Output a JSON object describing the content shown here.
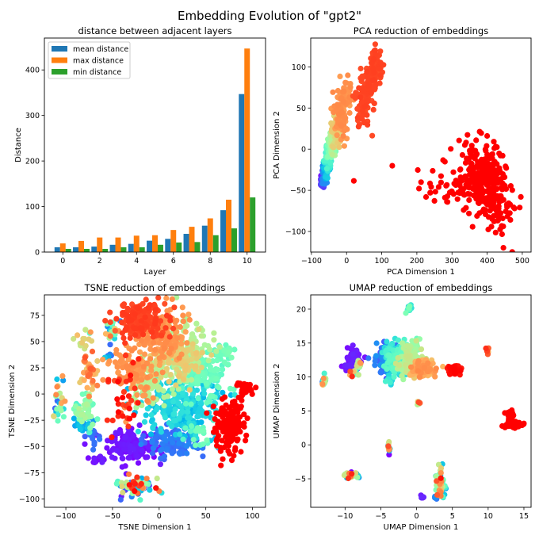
{
  "figure_title": "Embedding Evolution of \"gpt2\"",
  "chart_data": [
    {
      "type": "bar",
      "title": "distance between adjacent layers",
      "xlabel": "Layer",
      "ylabel": "Distance",
      "xlim": [
        -1.0,
        11.0
      ],
      "ylim": [
        0,
        470
      ],
      "xticks": [
        0,
        2,
        4,
        6,
        8,
        10
      ],
      "xtick_labels": [
        "0",
        "2",
        "4",
        "6",
        "8",
        "10"
      ],
      "yticks": [
        0,
        100,
        200,
        300,
        400
      ],
      "ytick_labels": [
        "0",
        "100",
        "200",
        "300",
        "400"
      ],
      "legend_position": "top-left",
      "categories": [
        0,
        1,
        2,
        3,
        4,
        5,
        6,
        7,
        8,
        9,
        10
      ],
      "series": [
        {
          "name": "mean distance",
          "color": "#1f77b4",
          "values": [
            10.5,
            10.5,
            12,
            16,
            18,
            25,
            29,
            40,
            58,
            92,
            347
          ]
        },
        {
          "name": "max distance",
          "color": "#ff7f0e",
          "values": [
            19,
            24.5,
            32,
            32,
            36,
            37,
            48.5,
            55.5,
            74,
            115,
            447
          ]
        },
        {
          "name": "min distance",
          "color": "#2ca02c",
          "values": [
            7,
            7,
            7,
            10.5,
            10.5,
            16,
            21,
            22,
            37,
            52,
            120
          ]
        }
      ]
    },
    {
      "type": "scatter",
      "title": "PCA reduction of embeddings",
      "xlabel": "PCA Dimension 1",
      "ylabel": "PCA Dimension 2",
      "xlim": [
        -102,
        525
      ],
      "ylim": [
        -125,
        135
      ],
      "xticks": [
        -100,
        0,
        100,
        200,
        300,
        400,
        500
      ],
      "xtick_labels": [
        "−100",
        "0",
        "100",
        "200",
        "300",
        "400",
        "500"
      ],
      "yticks": [
        -100,
        -50,
        0,
        50,
        100
      ],
      "ytick_labels": [
        "−100",
        "−50",
        "0",
        "50",
        "100"
      ],
      "colormap": "rainbow (by layer)",
      "clusters": [
        {
          "x": -68,
          "y": -40,
          "sx": 4,
          "sy": 4,
          "n": 40,
          "c": [
            0.0,
            0.1
          ]
        },
        {
          "x": -63,
          "y": -31,
          "sx": 4,
          "sy": 5,
          "n": 40,
          "c": [
            0.1,
            0.2
          ]
        },
        {
          "x": -58,
          "y": -22,
          "sx": 5,
          "sy": 6,
          "n": 40,
          "c": [
            0.2,
            0.3
          ]
        },
        {
          "x": -52,
          "y": -12,
          "sx": 5,
          "sy": 6,
          "n": 45,
          "c": [
            0.3,
            0.42
          ]
        },
        {
          "x": -45,
          "y": -2,
          "sx": 6,
          "sy": 6,
          "n": 50,
          "c": [
            0.42,
            0.52
          ]
        },
        {
          "x": -38,
          "y": 8,
          "sx": 7,
          "sy": 8,
          "n": 50,
          "c": [
            0.52,
            0.62
          ]
        },
        {
          "x": -30,
          "y": 22,
          "sx": 8,
          "sy": 10,
          "n": 60,
          "c": [
            0.66,
            0.72
          ]
        },
        {
          "x": -15,
          "y": 45,
          "sx": 10,
          "sy": 14,
          "n": 80,
          "c": [
            0.78,
            0.82
          ]
        },
        {
          "x": 0,
          "y": 62,
          "sx": 8,
          "sy": 10,
          "n": 40,
          "c": [
            0.78,
            0.82
          ]
        },
        {
          "x": 45,
          "y": 50,
          "sx": 10,
          "sy": 10,
          "n": 50,
          "c": [
            0.9,
            0.92
          ]
        },
        {
          "x": 65,
          "y": 78,
          "sx": 12,
          "sy": 14,
          "n": 90,
          "c": [
            0.9,
            0.92
          ]
        },
        {
          "x": 85,
          "y": 103,
          "sx": 8,
          "sy": 10,
          "n": 60,
          "c": [
            0.9,
            0.92
          ]
        },
        {
          "x": 385,
          "y": -35,
          "sx": 35,
          "sy": 22,
          "n": 260,
          "c": [
            1.0,
            1.0
          ]
        },
        {
          "x": 420,
          "y": -70,
          "sx": 25,
          "sy": 20,
          "n": 60,
          "c": [
            1.0,
            1.0
          ]
        },
        {
          "x": 270,
          "y": -40,
          "sx": 45,
          "sy": 20,
          "n": 30,
          "c": [
            1.0,
            1.0
          ]
        },
        {
          "x": 20,
          "y": -38,
          "sx": 0.5,
          "sy": 0.5,
          "n": 1,
          "c": [
            1.0,
            1.0
          ]
        },
        {
          "x": 130,
          "y": -20,
          "sx": 0.5,
          "sy": 0.5,
          "n": 1,
          "c": [
            1.0,
            1.0
          ]
        }
      ]
    },
    {
      "type": "scatter",
      "title": "TSNE reduction of embeddings",
      "xlabel": "TSNE Dimension 1",
      "ylabel": "TSNE Dimension 2",
      "xlim": [
        -123,
        114
      ],
      "ylim": [
        -108,
        94.5
      ],
      "xticks": [
        -100,
        -50,
        0,
        50,
        100
      ],
      "xtick_labels": [
        "−100",
        "−50",
        "0",
        "50",
        "100"
      ],
      "yticks": [
        -100,
        -75,
        -50,
        -25,
        0,
        25,
        50,
        75
      ],
      "ytick_labels": [
        "−100",
        "−75",
        "−50",
        "−25",
        "0",
        "25",
        "50",
        "75"
      ],
      "colormap": "rainbow (by layer)",
      "clusters": [
        {
          "x": 20,
          "y": -10,
          "sx": 22,
          "sy": 14,
          "n": 260,
          "c": [
            0.25,
            0.35
          ]
        },
        {
          "x": 45,
          "y": 20,
          "sx": 14,
          "sy": 12,
          "n": 130,
          "c": [
            0.42,
            0.48
          ]
        },
        {
          "x": 15,
          "y": -45,
          "sx": 16,
          "sy": 7,
          "n": 130,
          "c": [
            0.12,
            0.18
          ]
        },
        {
          "x": -30,
          "y": -50,
          "sx": 14,
          "sy": 9,
          "n": 160,
          "c": [
            0.0,
            0.04
          ]
        },
        {
          "x": -65,
          "y": -62,
          "sx": 4,
          "sy": 2,
          "n": 15,
          "c": [
            0.0,
            0.04
          ]
        },
        {
          "x": -10,
          "y": 15,
          "sx": 12,
          "sy": 10,
          "n": 90,
          "c": [
            0.58,
            0.62
          ]
        },
        {
          "x": 30,
          "y": 45,
          "sx": 14,
          "sy": 14,
          "n": 110,
          "c": [
            0.58,
            0.62
          ]
        },
        {
          "x": 20,
          "y": 32,
          "sx": 14,
          "sy": 12,
          "n": 120,
          "c": [
            0.68,
            0.72
          ]
        },
        {
          "x": 5,
          "y": 55,
          "sx": 14,
          "sy": 13,
          "n": 150,
          "c": [
            0.78,
            0.82
          ]
        },
        {
          "x": -25,
          "y": 25,
          "sx": 13,
          "sy": 14,
          "n": 110,
          "c": [
            0.78,
            0.82
          ]
        },
        {
          "x": -20,
          "y": 70,
          "sx": 14,
          "sy": 9,
          "n": 160,
          "c": [
            0.9,
            0.93
          ]
        },
        {
          "x": 75,
          "y": -30,
          "sx": 9,
          "sy": 13,
          "n": 160,
          "c": [
            1.0,
            1.0
          ]
        },
        {
          "x": 92,
          "y": 5,
          "sx": 5,
          "sy": 4,
          "n": 30,
          "c": [
            1.0,
            1.0
          ]
        },
        {
          "x": -40,
          "y": -5,
          "sx": 9,
          "sy": 18,
          "n": 35,
          "c": [
            0.9,
            1.0
          ]
        },
        {
          "x": -75,
          "y": 20,
          "sx": 5,
          "sy": 9,
          "n": 40,
          "c": [
            0.7,
            0.9
          ]
        },
        {
          "x": -80,
          "y": -15,
          "sx": 6,
          "sy": 9,
          "n": 50,
          "c": [
            0.4,
            0.6
          ]
        },
        {
          "x": -82,
          "y": -30,
          "sx": 5,
          "sy": 5,
          "n": 25,
          "c": [
            0.2,
            0.3
          ]
        },
        {
          "x": -72,
          "y": -40,
          "sx": 4,
          "sy": 5,
          "n": 20,
          "c": [
            0.12,
            0.16
          ]
        },
        {
          "x": -107,
          "y": -5,
          "sx": 3,
          "sy": 10,
          "n": 25,
          "c": [
            0.1,
            0.85
          ]
        },
        {
          "x": -25,
          "y": -88,
          "sx": 11,
          "sy": 6,
          "n": 70,
          "c": [
            0.0,
            1.0
          ]
        },
        {
          "x": -50,
          "y": 60,
          "sx": 5,
          "sy": 5,
          "n": 20,
          "c": [
            0.1,
            0.9
          ]
        },
        {
          "x": -80,
          "y": 50,
          "sx": 6,
          "sy": 5,
          "n": 15,
          "c": [
            0.4,
            0.8
          ]
        },
        {
          "x": -55,
          "y": 35,
          "sx": 2,
          "sy": 2,
          "n": 6,
          "c": [
            0.05,
            0.3
          ]
        },
        {
          "x": 45,
          "y": -40,
          "sx": 10,
          "sy": 6,
          "n": 20,
          "c": [
            0.4,
            0.5
          ]
        },
        {
          "x": 70,
          "y": 40,
          "sx": 6,
          "sy": 4,
          "n": 20,
          "c": [
            0.4,
            0.5
          ]
        }
      ]
    },
    {
      "type": "scatter",
      "title": "UMAP reduction of embeddings",
      "xlabel": "UMAP Dimension 1",
      "ylabel": "UMAP Dimension 2",
      "xlim": [
        -14.8,
        16.0
      ],
      "ylim": [
        -9.2,
        22.1
      ],
      "xticks": [
        -10,
        -5,
        0,
        5,
        10,
        15
      ],
      "xtick_labels": [
        "−10",
        "−5",
        "0",
        "5",
        "10",
        "15"
      ],
      "yticks": [
        -5,
        0,
        5,
        10,
        15,
        20
      ],
      "ytick_labels": [
        "−5",
        "0",
        "5",
        "10",
        "15",
        "20"
      ],
      "colormap": "rainbow (by layer)",
      "clusters": [
        {
          "x": -4.2,
          "y": 12.5,
          "sx": 0.7,
          "sy": 1.0,
          "n": 150,
          "c": [
            0.1,
            0.2
          ]
        },
        {
          "x": -2.8,
          "y": 12.6,
          "sx": 0.9,
          "sy": 1.0,
          "n": 160,
          "c": [
            0.3,
            0.45
          ]
        },
        {
          "x": -0.9,
          "y": 12.3,
          "sx": 0.8,
          "sy": 1.0,
          "n": 110,
          "c": [
            0.55,
            0.65
          ]
        },
        {
          "x": -0.3,
          "y": 14.6,
          "sx": 0.4,
          "sy": 0.5,
          "n": 25,
          "c": [
            0.42,
            0.55
          ]
        },
        {
          "x": 0.9,
          "y": 11.2,
          "sx": 0.9,
          "sy": 0.6,
          "n": 130,
          "c": [
            0.7,
            0.82
          ]
        },
        {
          "x": -3.8,
          "y": 9.6,
          "sx": 0.3,
          "sy": 0.3,
          "n": 12,
          "c": [
            0.25,
            0.4
          ]
        },
        {
          "x": 5.2,
          "y": 11.0,
          "sx": 0.45,
          "sy": 0.35,
          "n": 70,
          "c": [
            0.95,
            1.0
          ]
        },
        {
          "x": 13.6,
          "y": 3.0,
          "sx": 0.55,
          "sy": 0.25,
          "n": 90,
          "c": [
            1.0,
            1.0
          ]
        },
        {
          "x": 13.3,
          "y": 4.5,
          "sx": 0.3,
          "sy": 0.3,
          "n": 30,
          "c": [
            1.0,
            1.0
          ]
        },
        {
          "x": -8.8,
          "y": 12.6,
          "sx": 0.5,
          "sy": 0.8,
          "n": 60,
          "c": [
            0.0,
            0.05
          ]
        },
        {
          "x": -9.8,
          "y": 11.6,
          "sx": 0.3,
          "sy": 0.2,
          "n": 12,
          "c": [
            0.0,
            0.05
          ]
        },
        {
          "x": -8.7,
          "y": 10.5,
          "sx": 0.3,
          "sy": 0.3,
          "n": 10,
          "c": [
            0.1,
            1.0
          ]
        },
        {
          "x": -8.0,
          "y": 11.9,
          "sx": 0.2,
          "sy": 0.3,
          "n": 8,
          "c": [
            0.5,
            0.85
          ]
        },
        {
          "x": -13.0,
          "y": 9.2,
          "sx": 0.15,
          "sy": 0.4,
          "n": 15,
          "c": [
            0.1,
            0.85
          ]
        },
        {
          "x": -1.1,
          "y": 20.0,
          "sx": 0.2,
          "sy": 0.3,
          "n": 15,
          "c": [
            0.3,
            0.5
          ]
        },
        {
          "x": 10.0,
          "y": 14.0,
          "sx": 0.2,
          "sy": 0.3,
          "n": 8,
          "c": [
            0.6,
            1.0
          ]
        },
        {
          "x": 0.3,
          "y": 6.2,
          "sx": 0.1,
          "sy": 0.15,
          "n": 8,
          "c": [
            0.3,
            1.0
          ]
        },
        {
          "x": -3.9,
          "y": -0.4,
          "sx": 0.1,
          "sy": 0.45,
          "n": 15,
          "c": [
            0.0,
            1.0
          ]
        },
        {
          "x": -9.0,
          "y": -4.5,
          "sx": 0.5,
          "sy": 0.2,
          "n": 40,
          "c": [
            0.0,
            1.0
          ]
        },
        {
          "x": 3.4,
          "y": -5.5,
          "sx": 0.35,
          "sy": 1.2,
          "n": 50,
          "c": [
            0.2,
            1.0
          ]
        },
        {
          "x": 0.8,
          "y": -7.7,
          "sx": 0.15,
          "sy": 0.1,
          "n": 8,
          "c": [
            0.0,
            0.05
          ]
        },
        {
          "x": 2.7,
          "y": -7.7,
          "sx": 0.15,
          "sy": 0.1,
          "n": 8,
          "c": [
            0.12,
            0.2
          ]
        }
      ]
    }
  ]
}
